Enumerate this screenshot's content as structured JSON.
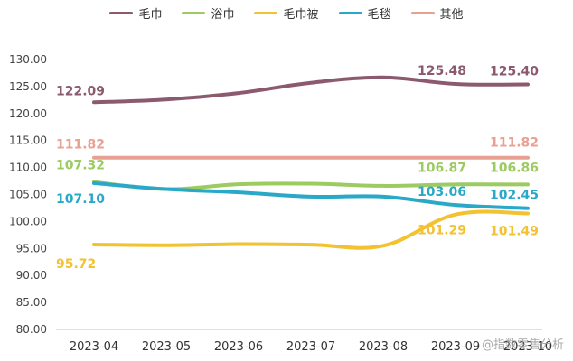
{
  "chart_data": {
    "type": "line",
    "categories": [
      "2023-04",
      "2023-05",
      "2023-06",
      "2023-07",
      "2023-08",
      "2023-09",
      "2023-10"
    ],
    "ylim": [
      80,
      130
    ],
    "yticks": [
      "80.00",
      "85.00",
      "90.00",
      "95.00",
      "100.00",
      "105.00",
      "110.00",
      "115.00",
      "120.00",
      "125.00",
      "130.00"
    ],
    "legend_position": "top",
    "grid": false,
    "series": [
      {
        "name": "毛巾",
        "color": "#8B5A6E",
        "values": [
          122.09,
          122.6,
          123.8,
          125.7,
          126.7,
          125.48,
          125.4
        ],
        "labels": [
          {
            "index": 0,
            "text": "122.09"
          },
          {
            "index": 5,
            "text": "125.48"
          },
          {
            "index": 6,
            "text": "125.40"
          }
        ]
      },
      {
        "name": "浴巾",
        "color": "#9CCB62",
        "values": [
          107.32,
          106.0,
          106.9,
          107.0,
          106.6,
          106.87,
          106.86
        ],
        "labels": [
          {
            "index": 0,
            "text": "107.32"
          },
          {
            "index": 5,
            "text": "106.87"
          },
          {
            "index": 6,
            "text": "106.86"
          }
        ]
      },
      {
        "name": "毛巾被",
        "color": "#F2C230",
        "values": [
          95.72,
          95.6,
          95.8,
          95.7,
          95.5,
          101.29,
          101.49
        ],
        "labels": [
          {
            "index": 0,
            "text": "95.72"
          },
          {
            "index": 5,
            "text": "101.29"
          },
          {
            "index": 6,
            "text": "101.49"
          }
        ]
      },
      {
        "name": "毛毯",
        "color": "#2AA8C8",
        "values": [
          107.1,
          106.0,
          105.4,
          104.6,
          104.6,
          103.06,
          102.45
        ],
        "labels": [
          {
            "index": 0,
            "text": "107.10"
          },
          {
            "index": 5,
            "text": "103.06"
          },
          {
            "index": 6,
            "text": "102.45"
          }
        ]
      },
      {
        "name": "其他",
        "color": "#E8A092",
        "values": [
          111.82,
          111.82,
          111.82,
          111.82,
          111.82,
          111.82,
          111.82
        ],
        "labels": [
          {
            "index": 0,
            "text": "111.82"
          },
          {
            "index": 6,
            "text": "111.82"
          }
        ]
      }
    ]
  },
  "watermark": "@指数零售分析"
}
